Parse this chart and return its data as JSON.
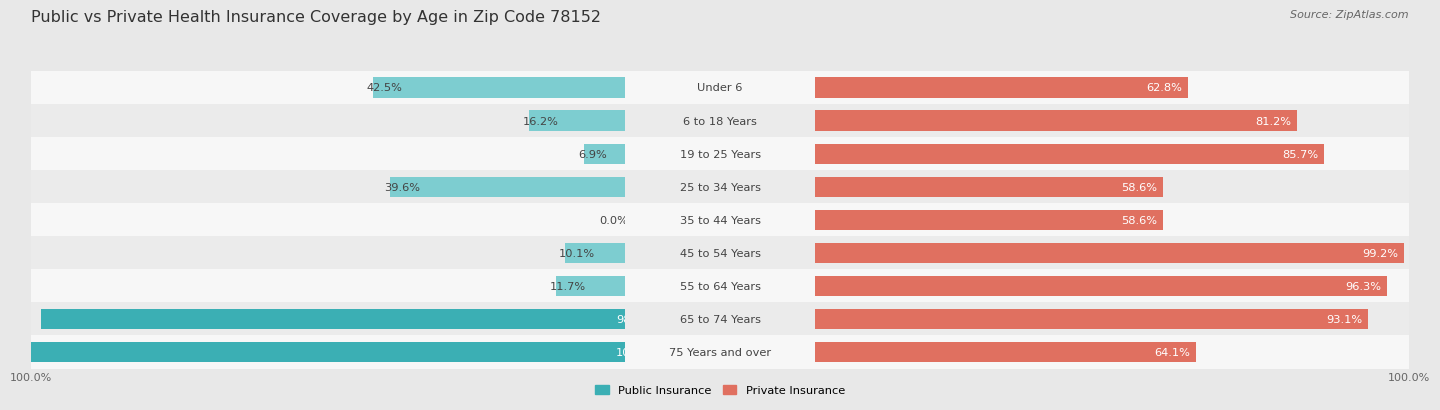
{
  "title": "Public vs Private Health Insurance Coverage by Age in Zip Code 78152",
  "source": "Source: ZipAtlas.com",
  "categories": [
    "Under 6",
    "6 to 18 Years",
    "19 to 25 Years",
    "25 to 34 Years",
    "35 to 44 Years",
    "45 to 54 Years",
    "55 to 64 Years",
    "65 to 74 Years",
    "75 Years and over"
  ],
  "public_values": [
    42.5,
    16.2,
    6.9,
    39.6,
    0.0,
    10.1,
    11.7,
    98.3,
    100.0
  ],
  "private_values": [
    62.8,
    81.2,
    85.7,
    58.6,
    58.6,
    99.2,
    96.3,
    93.1,
    64.1
  ],
  "public_color_dark": "#3BAFB4",
  "public_color_light": "#7DCDD0",
  "private_color_dark": "#E07060",
  "private_color_light": "#F0AFA8",
  "row_even_color": "#f7f7f7",
  "row_odd_color": "#ebebeb",
  "background_color": "#e8e8e8",
  "bar_height": 0.62,
  "title_fontsize": 11.5,
  "label_fontsize": 8.2,
  "tick_fontsize": 8.0,
  "source_fontsize": 8.0,
  "annot_threshold_dark": 50
}
